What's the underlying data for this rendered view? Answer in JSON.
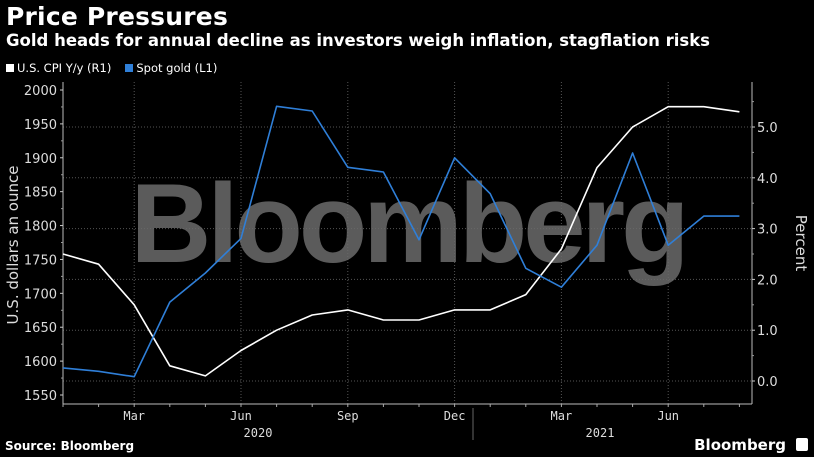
{
  "header": {
    "title": "Price Pressures",
    "subtitle": "Gold heads for annual decline as investors weigh inflation, stagflation risks"
  },
  "legend": [
    {
      "label": "U.S. CPI Y/y (R1)",
      "color": "#ffffff"
    },
    {
      "label": "Spot gold (L1)",
      "color": "#2f7fd8"
    }
  ],
  "footer": {
    "source": "Source: Bloomberg",
    "brand": "Bloomberg"
  },
  "watermark": "Bloomberg",
  "chart_data": {
    "type": "line",
    "title": "Price Pressures",
    "subtitle": "Gold heads for annual decline as investors weigh inflation, stagflation risks",
    "x": [
      "2020-01",
      "2020-02",
      "2020-03",
      "2020-04",
      "2020-05",
      "2020-06",
      "2020-07",
      "2020-08",
      "2020-09",
      "2020-10",
      "2020-11",
      "2020-12",
      "2021-01",
      "2021-02",
      "2021-03",
      "2021-04",
      "2021-05",
      "2021-06",
      "2021-07",
      "2021-08"
    ],
    "x_tick_labels": [
      "Mar",
      "Jun",
      "Sep",
      "Dec",
      "Mar",
      "Jun"
    ],
    "x_year_labels": [
      "2020",
      "2021"
    ],
    "series": [
      {
        "name": "U.S. CPI Y/y (R1)",
        "axis": "right",
        "color": "#ffffff",
        "values": [
          2.5,
          2.3,
          1.5,
          0.3,
          0.1,
          0.6,
          1.0,
          1.3,
          1.4,
          1.2,
          1.2,
          1.4,
          1.4,
          1.7,
          2.6,
          4.2,
          5.0,
          5.4,
          5.4,
          5.3
        ]
      },
      {
        "name": "Spot gold (L1)",
        "axis": "left",
        "color": "#2f7fd8",
        "values": [
          1590,
          1585,
          1577,
          1687,
          1730,
          1781,
          1976,
          1969,
          1886,
          1879,
          1779,
          1900,
          1847,
          1737,
          1709,
          1771,
          1907,
          1771,
          1814,
          1814
        ]
      }
    ],
    "ylabel_left": "U.S. dollars an ounce",
    "ylabel_right": "Percent",
    "ylim_left": [
      1550,
      2000
    ],
    "yticks_left": [
      1550,
      1600,
      1650,
      1700,
      1750,
      1800,
      1850,
      1900,
      1950,
      2000
    ],
    "ylim_right": [
      -0.25,
      5.75
    ],
    "yticks_right": [
      "0.0",
      "1.0",
      "2.0",
      "3.0",
      "4.0",
      "5.0"
    ],
    "grid": true,
    "legend_position": "top-left"
  }
}
